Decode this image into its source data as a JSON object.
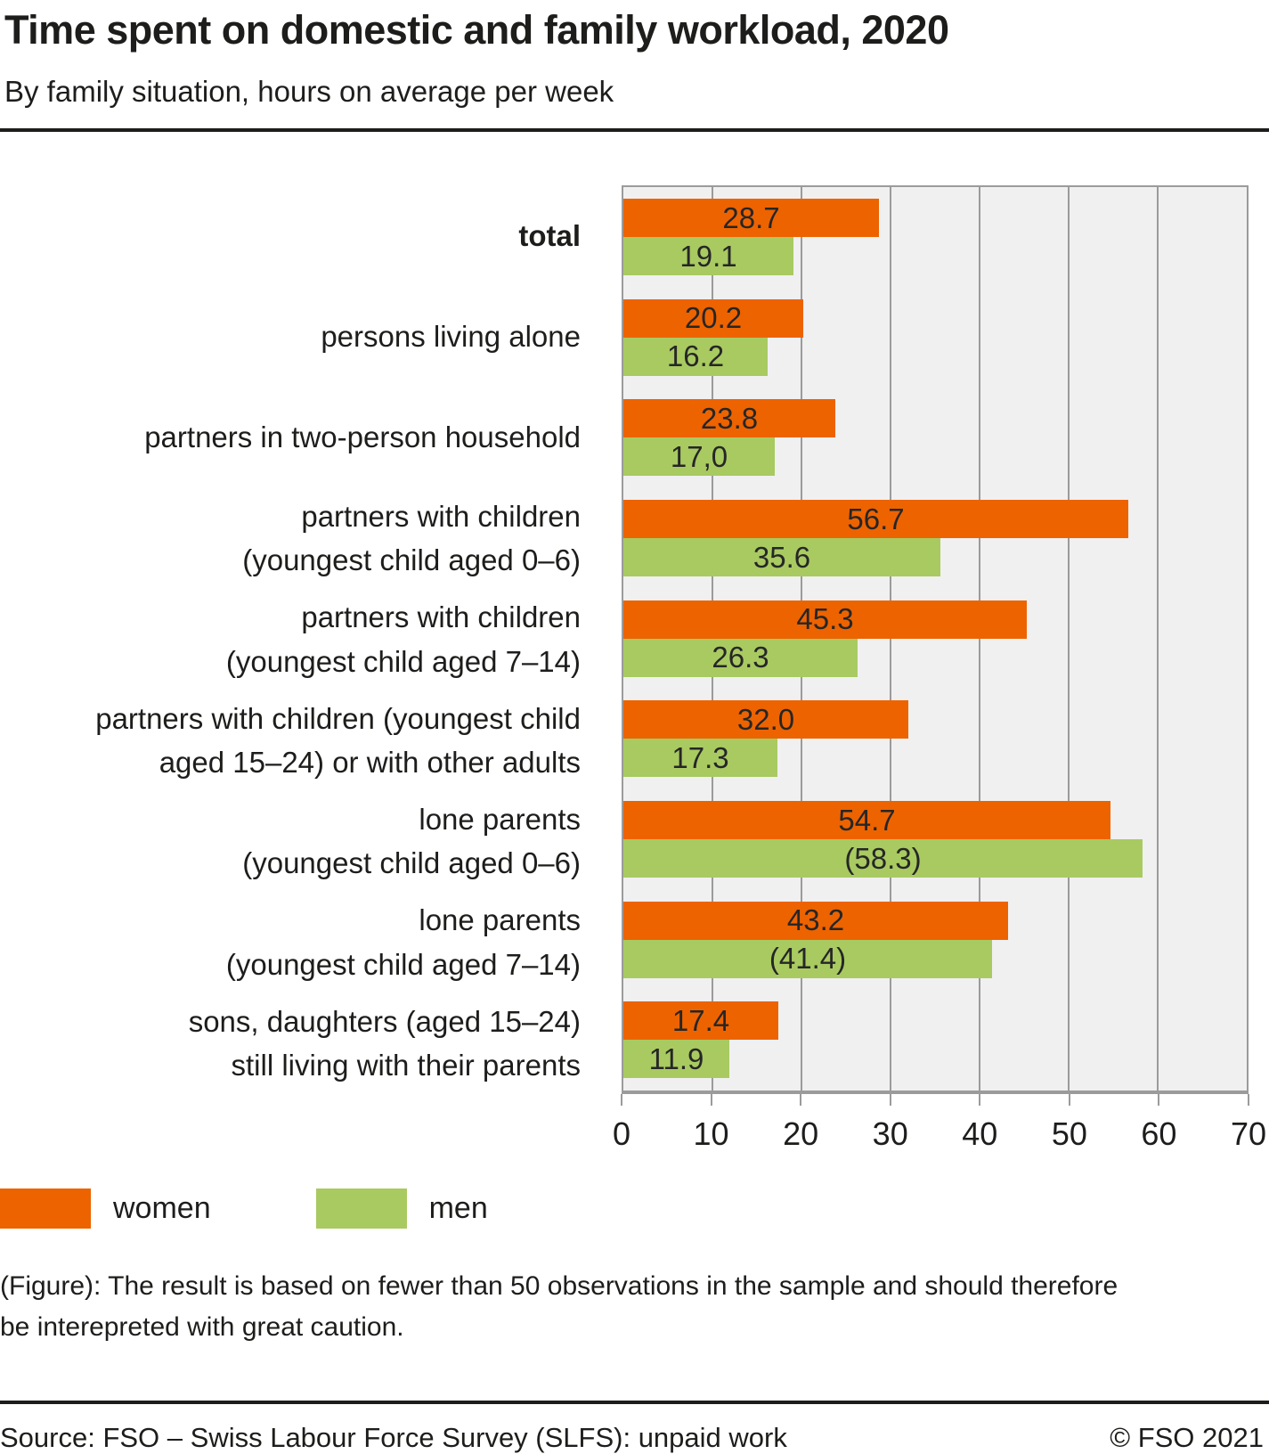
{
  "header": {
    "title": "Time spent on domestic and family workload, 2020",
    "subtitle": "By family situation, hours on average per week"
  },
  "chart_data": {
    "type": "bar",
    "orientation": "horizontal",
    "title": "Time spent on domestic and family workload, 2020",
    "xlabel": "hours on average per week",
    "xlim": [
      0,
      70
    ],
    "xticks": [
      0,
      10,
      20,
      30,
      40,
      50,
      60,
      70
    ],
    "grid": "vertical",
    "plot_bg": "#f0f0f0",
    "grid_color": "#9b9b9b",
    "categories": [
      {
        "lines": [
          "total"
        ],
        "bold": true
      },
      {
        "lines": [
          "persons living alone"
        ],
        "bold": false
      },
      {
        "lines": [
          "partners in two-person household"
        ],
        "bold": false
      },
      {
        "lines": [
          "partners with children",
          "(youngest child aged 0–6)"
        ],
        "bold": false
      },
      {
        "lines": [
          "partners with children",
          "(youngest child aged 7–14)"
        ],
        "bold": false
      },
      {
        "lines": [
          "partners with children (youngest child",
          "aged 15–24) or with other adults"
        ],
        "bold": false
      },
      {
        "lines": [
          "lone parents",
          "(youngest child aged 0–6)"
        ],
        "bold": false
      },
      {
        "lines": [
          "lone parents",
          "(youngest child aged 7–14)"
        ],
        "bold": false
      },
      {
        "lines": [
          "sons, daughters (aged 15–24)",
          "still living with their parents"
        ],
        "bold": false
      }
    ],
    "series": [
      {
        "name": "women",
        "color": "#ed6300",
        "values": [
          28.7,
          20.2,
          23.8,
          56.7,
          45.3,
          32.0,
          54.7,
          43.2,
          17.4
        ],
        "labels": [
          "28.7",
          "20.2",
          "23.8",
          "56.7",
          "45.3",
          "32.0",
          "54.7",
          "43.2",
          "17.4"
        ]
      },
      {
        "name": "men",
        "color": "#a8ca61",
        "values": [
          19.1,
          16.2,
          17.0,
          35.6,
          26.3,
          17.3,
          58.3,
          41.4,
          11.9
        ],
        "labels": [
          "19.1",
          "16.2",
          "17,0",
          "35.6",
          "26.3",
          "17.3",
          "(58.3)",
          "(41.4)",
          "11.9"
        ]
      }
    ],
    "legend_position": "bottom-left"
  },
  "legend": {
    "items": [
      {
        "label": "women",
        "color": "#ed6300"
      },
      {
        "label": "men",
        "color": "#a8ca61"
      }
    ]
  },
  "footnote": [
    "(Figure): The result is based on fewer than 50 observations in the sample and should therefore",
    "be interepreted with great caution."
  ],
  "footer": {
    "source": "Source: FSO – Swiss Labour Force Survey (SLFS): unpaid work",
    "copyright": "© FSO 2021"
  }
}
